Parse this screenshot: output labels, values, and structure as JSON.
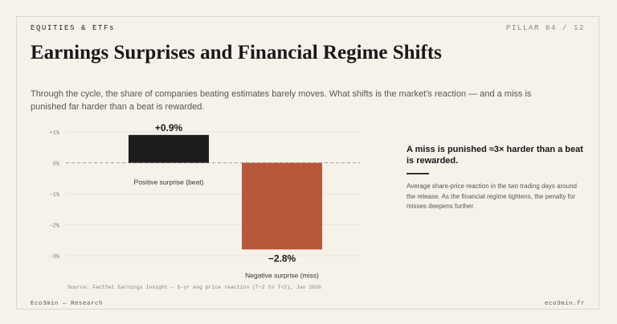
{
  "header": {
    "section_label": "EQUITIES & ETFs",
    "pillar": "PILLAR 04 / 12",
    "title": "Earnings Surprises and Financial Regime Shifts",
    "subtitle": "Through the cycle, the share of companies beating estimates barely moves. What shifts is the market’s reaction — and a miss is punished far harder than a beat is rewarded."
  },
  "chart_data": {
    "type": "bar",
    "categories": [
      "Positive surprise (beat)",
      "Negative surprise (miss)"
    ],
    "values": [
      0.9,
      -2.8
    ],
    "value_labels": [
      "+0.9%",
      "−2.8%"
    ],
    "colors": [
      "#1c1c1c",
      "#b8583a"
    ],
    "ylim": [
      -3,
      1
    ],
    "yticks": [
      {
        "value": 1,
        "label": "+1%"
      },
      {
        "value": 0,
        "label": "0%"
      },
      {
        "value": -1,
        "label": "−1%"
      },
      {
        "value": -2,
        "label": "−2%"
      },
      {
        "value": -3,
        "label": "−3%"
      }
    ],
    "grid": true,
    "zero_line": "dashed"
  },
  "callout": {
    "heading": "A miss is punished ≈3× harder than a beat is rewarded.",
    "body": "Average share-price reaction in the two trading days around the release. As the financial regime tightens, the penalty for misses deepens further."
  },
  "source": "Source: FactSet Earnings Insight — 5-yr avg price reaction (T−2 to T+2), Jan 2026",
  "footer": {
    "left": "Eco3min — Research",
    "right": "eco3min.fr"
  }
}
